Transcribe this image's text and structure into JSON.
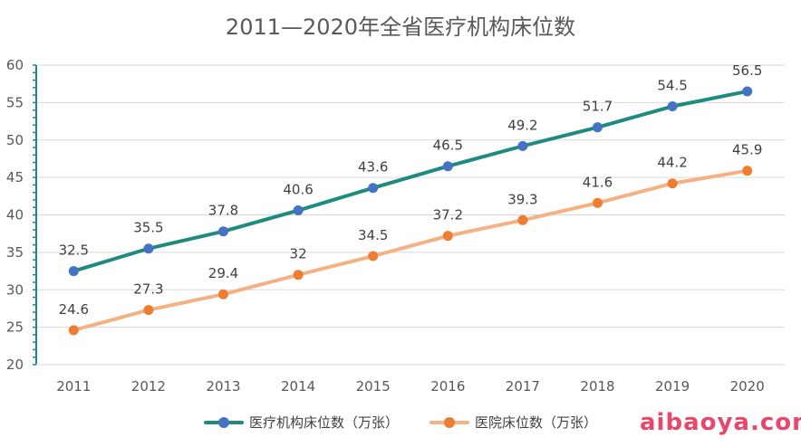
{
  "chart_data": {
    "type": "line",
    "title": "2011—2020年全省医疗机构床位数",
    "xlabel": "",
    "ylabel": "",
    "categories": [
      "2011",
      "2012",
      "2013",
      "2014",
      "2015",
      "2016",
      "2017",
      "2018",
      "2019",
      "2020"
    ],
    "ylim": [
      20,
      60
    ],
    "yticks": [
      "20",
      "25",
      "30",
      "35",
      "40",
      "45",
      "50",
      "55",
      "60"
    ],
    "grid": true,
    "legend_position": "bottom",
    "series": [
      {
        "name": "医疗机构床位数（万张）",
        "color": "#1f8a80",
        "marker_color": "#4472c4",
        "values": [
          32.5,
          35.5,
          37.8,
          40.6,
          43.6,
          46.5,
          49.2,
          51.7,
          54.5,
          56.5
        ],
        "labels": [
          "32.5",
          "35.5",
          "37.8",
          "40.6",
          "43.6",
          "46.5",
          "49.2",
          "51.7",
          "54.5",
          "56.5"
        ]
      },
      {
        "name": "医院床位数（万张）",
        "color": "#f4b183",
        "marker_color": "#ed7d31",
        "values": [
          24.6,
          27.3,
          29.4,
          32,
          34.5,
          37.2,
          39.3,
          41.6,
          44.2,
          45.9
        ],
        "labels": [
          "24.6",
          "27.3",
          "29.4",
          "32",
          "34.5",
          "37.2",
          "39.3",
          "41.6",
          "44.2",
          "45.9"
        ]
      }
    ]
  },
  "watermark": "aibaoya.com"
}
